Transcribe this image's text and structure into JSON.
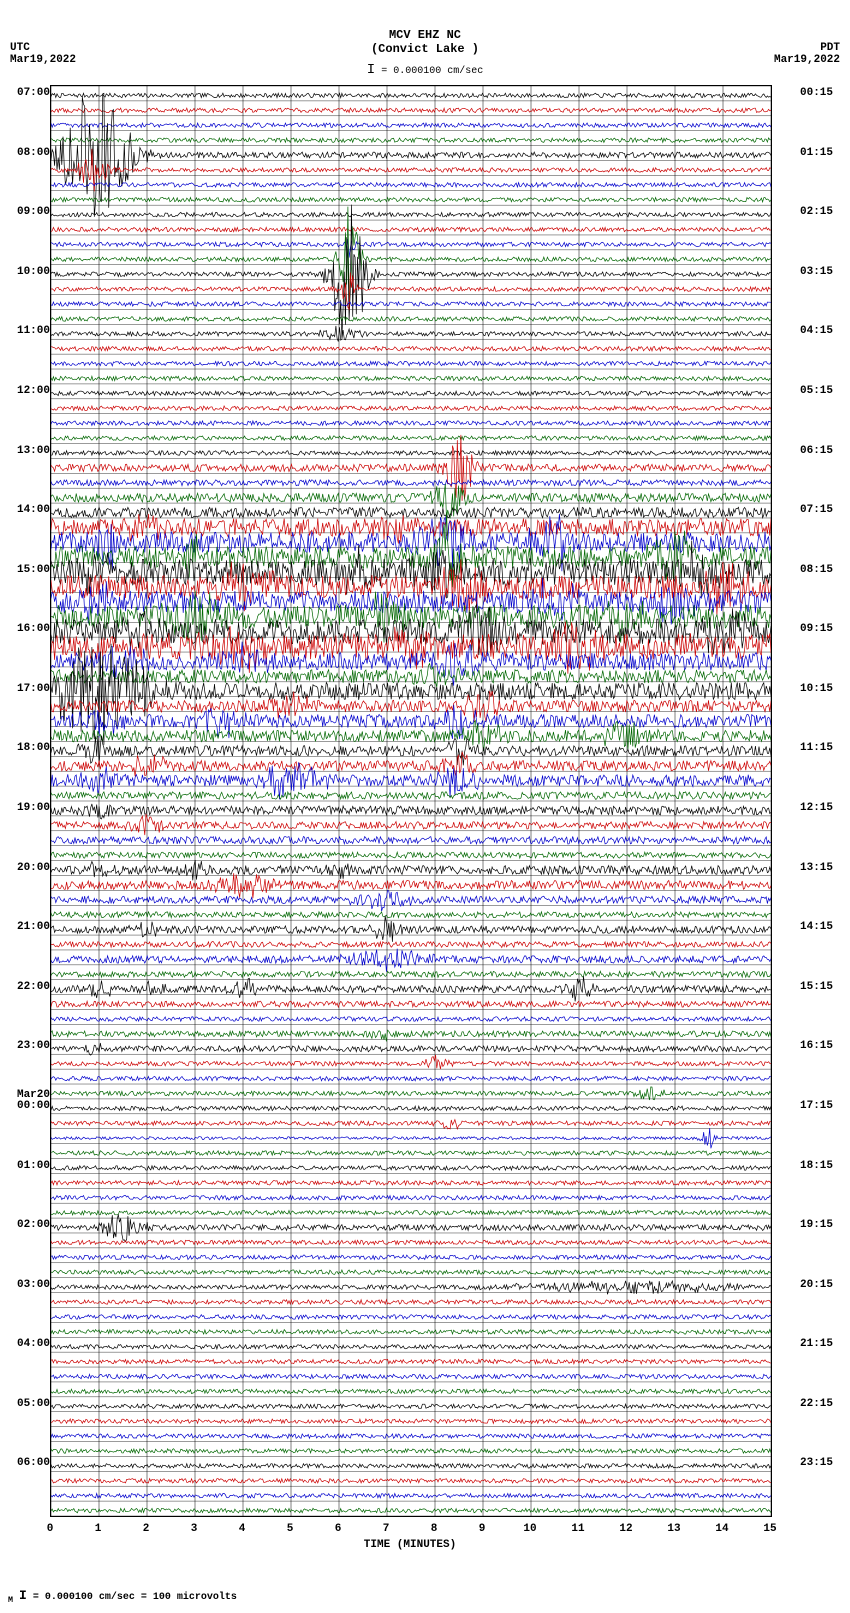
{
  "header": {
    "station": "MCV EHZ NC",
    "location": "(Convict Lake )",
    "scale_text": "= 0.000100 cm/sec"
  },
  "left": {
    "tz": "UTC",
    "date": "Mar19,2022"
  },
  "right": {
    "tz": "PDT",
    "date": "Mar19,2022"
  },
  "left_labels": [
    {
      "text": "07:00",
      "slot": 0
    },
    {
      "text": "08:00",
      "slot": 4
    },
    {
      "text": "09:00",
      "slot": 8
    },
    {
      "text": "10:00",
      "slot": 12
    },
    {
      "text": "11:00",
      "slot": 16
    },
    {
      "text": "12:00",
      "slot": 20
    },
    {
      "text": "13:00",
      "slot": 24
    },
    {
      "text": "14:00",
      "slot": 28
    },
    {
      "text": "15:00",
      "slot": 32
    },
    {
      "text": "16:00",
      "slot": 36
    },
    {
      "text": "17:00",
      "slot": 40
    },
    {
      "text": "18:00",
      "slot": 44
    },
    {
      "text": "19:00",
      "slot": 48
    },
    {
      "text": "20:00",
      "slot": 52
    },
    {
      "text": "21:00",
      "slot": 56
    },
    {
      "text": "22:00",
      "slot": 60
    },
    {
      "text": "23:00",
      "slot": 64
    },
    {
      "text": "Mar20",
      "slot": 67.3
    },
    {
      "text": "00:00",
      "slot": 68
    },
    {
      "text": "01:00",
      "slot": 72
    },
    {
      "text": "02:00",
      "slot": 76
    },
    {
      "text": "03:00",
      "slot": 80
    },
    {
      "text": "04:00",
      "slot": 84
    },
    {
      "text": "05:00",
      "slot": 88
    },
    {
      "text": "06:00",
      "slot": 92
    }
  ],
  "right_labels": [
    {
      "text": "00:15",
      "slot": 0
    },
    {
      "text": "01:15",
      "slot": 4
    },
    {
      "text": "02:15",
      "slot": 8
    },
    {
      "text": "03:15",
      "slot": 12
    },
    {
      "text": "04:15",
      "slot": 16
    },
    {
      "text": "05:15",
      "slot": 20
    },
    {
      "text": "06:15",
      "slot": 24
    },
    {
      "text": "07:15",
      "slot": 28
    },
    {
      "text": "08:15",
      "slot": 32
    },
    {
      "text": "09:15",
      "slot": 36
    },
    {
      "text": "10:15",
      "slot": 40
    },
    {
      "text": "11:15",
      "slot": 44
    },
    {
      "text": "12:15",
      "slot": 48
    },
    {
      "text": "13:15",
      "slot": 52
    },
    {
      "text": "14:15",
      "slot": 56
    },
    {
      "text": "15:15",
      "slot": 60
    },
    {
      "text": "16:15",
      "slot": 64
    },
    {
      "text": "17:15",
      "slot": 68
    },
    {
      "text": "18:15",
      "slot": 72
    },
    {
      "text": "19:15",
      "slot": 76
    },
    {
      "text": "20:15",
      "slot": 80
    },
    {
      "text": "21:15",
      "slot": 84
    },
    {
      "text": "22:15",
      "slot": 88
    },
    {
      "text": "23:15",
      "slot": 92
    }
  ],
  "xaxis": {
    "ticks": [
      0,
      1,
      2,
      3,
      4,
      5,
      6,
      7,
      8,
      9,
      10,
      11,
      12,
      13,
      14,
      15
    ],
    "title": "TIME (MINUTES)",
    "min": 0,
    "max": 15
  },
  "plot": {
    "rows": 96,
    "minute_divisions": 15,
    "colors": [
      "#000000",
      "#cc0000",
      "#0000cc",
      "#006600"
    ],
    "grid_color": "#000000",
    "background": "#ffffff",
    "row_base_noise": 0.3,
    "row_activity": {
      "4": {
        "noise": 0.4,
        "spikes": [
          {
            "x": 0.9,
            "a": 9,
            "w": 0.5
          }
        ]
      },
      "5": {
        "spikes": [
          {
            "x": 0.9,
            "a": 3,
            "w": 0.2
          }
        ]
      },
      "10": {
        "spikes": [
          {
            "x": 6.2,
            "a": 2,
            "w": 0.1
          }
        ]
      },
      "11": {
        "spikes": [
          {
            "x": 6.2,
            "a": 7,
            "w": 0.15
          }
        ]
      },
      "12": {
        "spikes": [
          {
            "x": 6.2,
            "a": 10,
            "w": 0.25
          }
        ]
      },
      "13": {
        "spikes": [
          {
            "x": 6.2,
            "a": 3,
            "w": 0.1
          }
        ]
      },
      "16": {
        "noise": 0.3,
        "spikes": [
          {
            "x": 6.0,
            "a": 1,
            "w": 0.3
          }
        ]
      },
      "25": {
        "noise": 0.5,
        "spikes": [
          {
            "x": 8.5,
            "a": 5,
            "w": 0.2
          }
        ]
      },
      "26": {
        "noise": 0.4
      },
      "27": {
        "noise": 0.6,
        "spikes": [
          {
            "x": 8.3,
            "a": 3,
            "w": 0.2
          }
        ]
      },
      "28": {
        "noise": 0.7
      },
      "29": {
        "noise": 1.2,
        "spikes": [
          {
            "x": 2,
            "a": 2,
            "w": 0.3
          },
          {
            "x": 7,
            "a": 2,
            "w": 0.3
          }
        ]
      },
      "30": {
        "noise": 1.4,
        "spikes": [
          {
            "x": 1.2,
            "a": 3,
            "w": 0.2
          },
          {
            "x": 8.2,
            "a": 4,
            "w": 0.3
          },
          {
            "x": 10.5,
            "a": 3,
            "w": 0.3
          }
        ]
      },
      "31": {
        "noise": 1.5,
        "spikes": [
          {
            "x": 8.3,
            "a": 6,
            "w": 0.2
          },
          {
            "x": 3,
            "a": 2,
            "w": 0.3
          },
          {
            "x": 13,
            "a": 3,
            "w": 0.3
          }
        ]
      },
      "32": {
        "noise": 1.8,
        "spikes": [
          {
            "x": 1,
            "a": 2,
            "w": 0.3
          },
          {
            "x": 6.5,
            "a": 3,
            "w": 0.3
          },
          {
            "x": 8,
            "a": 3,
            "w": 0.3
          },
          {
            "x": 13.5,
            "a": 3,
            "w": 0.3
          }
        ]
      },
      "33": {
        "noise": 1.6,
        "spikes": [
          {
            "x": 4,
            "a": 3,
            "w": 0.4
          },
          {
            "x": 8.5,
            "a": 3,
            "w": 0.3
          },
          {
            "x": 14,
            "a": 3,
            "w": 0.3
          }
        ]
      },
      "34": {
        "noise": 1.5,
        "spikes": [
          {
            "x": 1,
            "a": 2,
            "w": 0.3
          },
          {
            "x": 10.5,
            "a": 3,
            "w": 0.3
          },
          {
            "x": 13,
            "a": 3,
            "w": 0.3
          }
        ]
      },
      "35": {
        "noise": 1.6,
        "spikes": [
          {
            "x": 3,
            "a": 3,
            "w": 0.4
          },
          {
            "x": 7,
            "a": 3,
            "w": 0.3
          },
          {
            "x": 12,
            "a": 3,
            "w": 0.3
          }
        ]
      },
      "36": {
        "noise": 1.7,
        "spikes": [
          {
            "x": 2,
            "a": 2,
            "w": 0.3
          },
          {
            "x": 9,
            "a": 3,
            "w": 0.3
          },
          {
            "x": 14,
            "a": 3,
            "w": 0.3
          }
        ]
      },
      "37": {
        "noise": 1.8,
        "spikes": [
          {
            "x": 4,
            "a": 3,
            "w": 0.4
          },
          {
            "x": 7.5,
            "a": 3,
            "w": 0.3
          },
          {
            "x": 11,
            "a": 3,
            "w": 0.3
          }
        ]
      },
      "38": {
        "noise": 1.2,
        "spikes": [
          {
            "x": 1.5,
            "a": 2,
            "w": 0.3
          },
          {
            "x": 4,
            "a": 2,
            "w": 0.3
          },
          {
            "x": 8.5,
            "a": 3,
            "w": 0.3
          }
        ]
      },
      "39": {
        "noise": 0.9,
        "spikes": [
          {
            "x": 8,
            "a": 2,
            "w": 0.3
          }
        ]
      },
      "40": {
        "noise": 1.2,
        "spikes": [
          {
            "x": 0.8,
            "a": 6,
            "w": 0.6
          },
          {
            "x": 1.5,
            "a": 4,
            "w": 0.4
          }
        ]
      },
      "41": {
        "noise": 0.8,
        "spikes": [
          {
            "x": 5,
            "a": 1.5,
            "w": 0.3
          },
          {
            "x": 9,
            "a": 2,
            "w": 0.3
          }
        ]
      },
      "42": {
        "noise": 0.9,
        "spikes": [
          {
            "x": 1,
            "a": 2,
            "w": 0.3
          },
          {
            "x": 3.5,
            "a": 2,
            "w": 0.3
          },
          {
            "x": 8.5,
            "a": 2,
            "w": 0.3
          }
        ]
      },
      "43": {
        "noise": 0.8,
        "spikes": [
          {
            "x": 9,
            "a": 2,
            "w": 0.3
          },
          {
            "x": 12,
            "a": 2,
            "w": 0.3
          }
        ]
      },
      "44": {
        "noise": 0.7,
        "spikes": [
          {
            "x": 1,
            "a": 1.5,
            "w": 0.3
          },
          {
            "x": 8.5,
            "a": 2,
            "w": 0.2
          }
        ]
      },
      "45": {
        "noise": 0.7,
        "spikes": [
          {
            "x": 2,
            "a": 1.5,
            "w": 0.3
          },
          {
            "x": 8.5,
            "a": 2,
            "w": 0.2
          }
        ]
      },
      "46": {
        "noise": 0.8,
        "spikes": [
          {
            "x": 1,
            "a": 2,
            "w": 0.3
          },
          {
            "x": 5,
            "a": 2.5,
            "w": 0.4
          },
          {
            "x": 8.5,
            "a": 2,
            "w": 0.3
          }
        ]
      },
      "47": {
        "noise": 0.5
      },
      "48": {
        "noise": 0.6,
        "spikes": [
          {
            "x": 1,
            "a": 1,
            "w": 0.2
          }
        ]
      },
      "49": {
        "noise": 0.5,
        "spikes": [
          {
            "x": 2,
            "a": 1.5,
            "w": 0.2
          }
        ]
      },
      "50": {
        "noise": 0.5
      },
      "51": {
        "noise": 0.4
      },
      "52": {
        "noise": 0.6,
        "spikes": [
          {
            "x": 1,
            "a": 1,
            "w": 0.2
          },
          {
            "x": 3,
            "a": 1,
            "w": 0.2
          },
          {
            "x": 6,
            "a": 1.5,
            "w": 0.2
          }
        ]
      },
      "53": {
        "noise": 0.6,
        "spikes": [
          {
            "x": 4,
            "a": 1.5,
            "w": 0.4
          }
        ]
      },
      "54": {
        "noise": 0.5,
        "spikes": [
          {
            "x": 7,
            "a": 1.5,
            "w": 0.4
          }
        ]
      },
      "55": {
        "noise": 0.4
      },
      "56": {
        "noise": 0.5,
        "spikes": [
          {
            "x": 2,
            "a": 1,
            "w": 0.2
          },
          {
            "x": 7,
            "a": 1.5,
            "w": 0.2
          }
        ]
      },
      "57": {
        "noise": 0.4
      },
      "58": {
        "noise": 0.5,
        "spikes": [
          {
            "x": 7,
            "a": 1.5,
            "w": 0.5
          }
        ]
      },
      "59": {
        "noise": 0.4
      },
      "60": {
        "noise": 0.5,
        "spikes": [
          {
            "x": 1,
            "a": 1,
            "w": 0.2
          },
          {
            "x": 2.2,
            "a": 1,
            "w": 0.2
          },
          {
            "x": 4,
            "a": 1.5,
            "w": 0.2
          },
          {
            "x": 11,
            "a": 1.5,
            "w": 0.2
          }
        ]
      },
      "61": {
        "noise": 0.4
      },
      "62": {
        "noise": 0.3
      },
      "63": {
        "noise": 0.4,
        "spikes": [
          {
            "x": 7,
            "a": 1,
            "w": 0.2
          }
        ]
      },
      "64": {
        "noise": 0.4,
        "spikes": [
          {
            "x": 1,
            "a": 1,
            "w": 0.2
          }
        ]
      },
      "65": {
        "noise": 0.3,
        "spikes": [
          {
            "x": 8,
            "a": 1,
            "w": 0.2
          }
        ]
      },
      "66": {
        "noise": 0.3
      },
      "67": {
        "noise": 0.3,
        "spikes": [
          {
            "x": 12.5,
            "a": 1,
            "w": 0.2
          }
        ]
      },
      "68": {
        "noise": 0.3
      },
      "69": {
        "noise": 0.3,
        "spikes": [
          {
            "x": 8.3,
            "a": 1,
            "w": 0.15
          }
        ]
      },
      "70": {
        "noise": 0.2,
        "spikes": [
          {
            "x": 13.7,
            "a": 1.5,
            "w": 0.1
          }
        ]
      },
      "76": {
        "noise": 0.4,
        "spikes": [
          {
            "x": 1.5,
            "a": 2,
            "w": 0.3
          }
        ]
      },
      "80": {
        "noise": 0.3,
        "spikes": [
          {
            "x": 12,
            "a": 0.8,
            "w": 1.5
          }
        ]
      }
    }
  },
  "footer": {
    "text": "= 0.000100 cm/sec =    100 microvolts"
  }
}
